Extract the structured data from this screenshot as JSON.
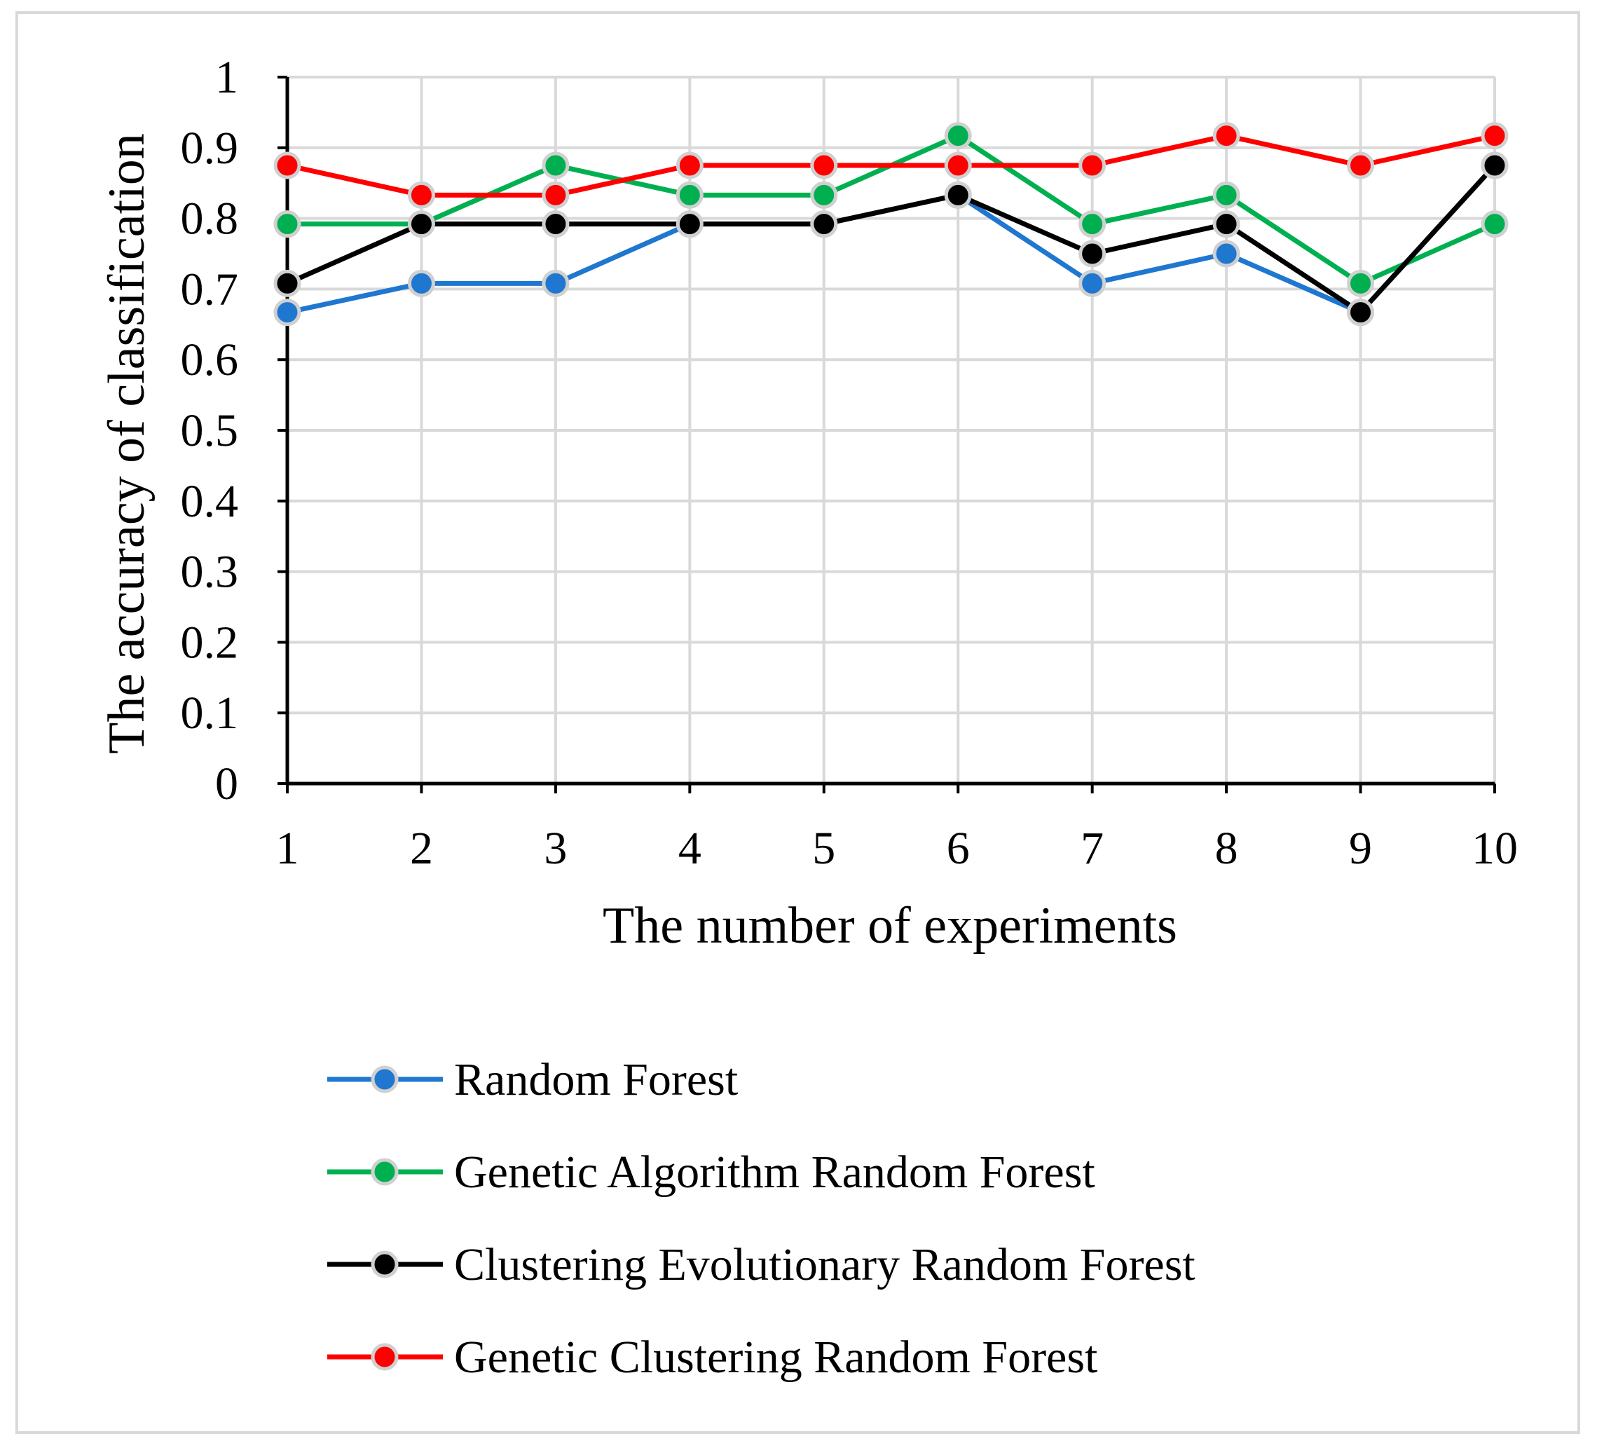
{
  "chart_data": {
    "type": "line",
    "x": [
      1,
      2,
      3,
      4,
      5,
      6,
      7,
      8,
      9,
      10
    ],
    "xticks": [
      "1",
      "2",
      "3",
      "4",
      "5",
      "6",
      "7",
      "8",
      "9",
      "10"
    ],
    "yticks": [
      "0",
      "0.1",
      "0.2",
      "0.3",
      "0.4",
      "0.5",
      "0.6",
      "0.7",
      "0.8",
      "0.9",
      "1"
    ],
    "ylim": [
      0,
      1
    ],
    "xlabel": "The number of experiments",
    "ylabel": "The accuracy of classification",
    "grid": true,
    "legend_position": "bottom",
    "series": [
      {
        "name": "Random Forest",
        "color": "#1f77d0",
        "values": [
          0.667,
          0.708,
          0.708,
          0.792,
          0.792,
          0.833,
          0.708,
          0.75,
          0.667,
          0.875
        ]
      },
      {
        "name": "Genetic Algorithm Random Forest",
        "color": "#00b050",
        "values": [
          0.792,
          0.792,
          0.875,
          0.833,
          0.833,
          0.917,
          0.792,
          0.833,
          0.708,
          0.792
        ]
      },
      {
        "name": "Clustering Evolutionary Random Forest",
        "color": "#000000",
        "values": [
          0.708,
          0.792,
          0.792,
          0.792,
          0.792,
          0.833,
          0.75,
          0.792,
          0.667,
          0.875
        ]
      },
      {
        "name": "Genetic Clustering Random Forest",
        "color": "#ff0000",
        "values": [
          0.875,
          0.833,
          0.833,
          0.875,
          0.875,
          0.875,
          0.875,
          0.917,
          0.875,
          0.917
        ]
      }
    ]
  }
}
